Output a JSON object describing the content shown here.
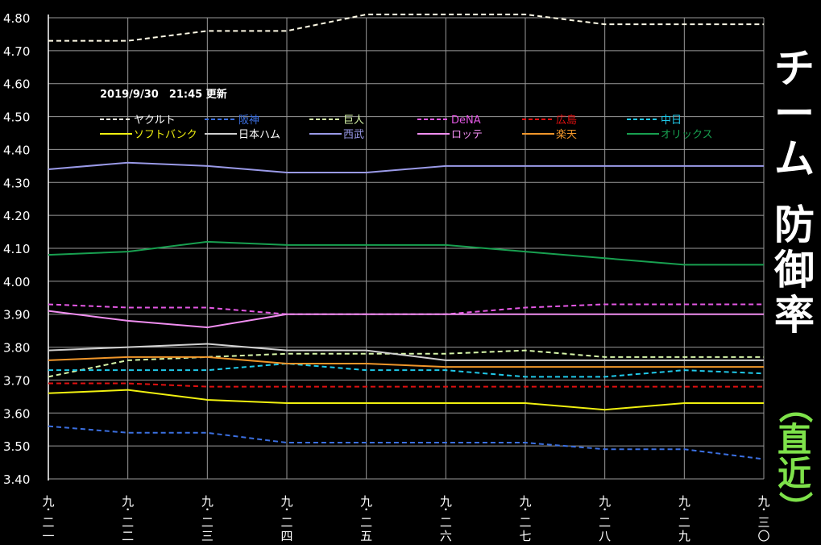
{
  "chart_data": {
    "type": "line",
    "timestamp": "2019/9/30　21:45 更新",
    "title_main": [
      "チ",
      "ー",
      "ム",
      "防",
      "御",
      "率"
    ],
    "title_sub": [
      "（",
      "直",
      "近",
      "）"
    ],
    "x_tick_labels": [
      "九・二一",
      "九・二二",
      "九・二三",
      "九・二四",
      "九・二五",
      "九・二六",
      "九・二七",
      "九・二八",
      "九・二九",
      "九・三〇"
    ],
    "y_tick_labels": [
      "3.40",
      "3.50",
      "3.60",
      "3.70",
      "3.80",
      "3.90",
      "4.00",
      "4.10",
      "4.20",
      "4.30",
      "4.40",
      "4.50",
      "4.60",
      "4.70",
      "4.80"
    ],
    "ylim": [
      3.4,
      4.8
    ],
    "series": [
      {
        "name": "ヤクルト",
        "color": "#fffbe6",
        "dashed": true,
        "legend_color": "#ffffff",
        "values": [
          4.73,
          4.73,
          4.76,
          4.76,
          4.81,
          4.81,
          4.81,
          4.78,
          4.78,
          4.78
        ]
      },
      {
        "name": "阪神",
        "color": "#3b6fe0",
        "dashed": true,
        "legend_color": "#3b6fe0",
        "values": [
          3.56,
          3.54,
          3.54,
          3.51,
          3.51,
          3.51,
          3.51,
          3.49,
          3.49,
          3.46
        ]
      },
      {
        "name": "巨人",
        "color": "#d6f5a8",
        "dashed": true,
        "legend_color": "#d6f5a8",
        "values": [
          3.71,
          3.76,
          3.77,
          3.78,
          3.78,
          3.78,
          3.79,
          3.77,
          3.77,
          3.77
        ]
      },
      {
        "name": "DeNA",
        "color": "#e458e4",
        "dashed": true,
        "legend_color": "#e458e4",
        "values": [
          3.93,
          3.92,
          3.92,
          3.9,
          3.9,
          3.9,
          3.92,
          3.93,
          3.93,
          3.93
        ]
      },
      {
        "name": "広島",
        "color": "#e01010",
        "dashed": true,
        "legend_color": "#e01010",
        "values": [
          3.69,
          3.69,
          3.68,
          3.68,
          3.68,
          3.68,
          3.68,
          3.68,
          3.68,
          3.68
        ]
      },
      {
        "name": "中日",
        "color": "#20c8e8",
        "dashed": true,
        "legend_color": "#20c8e8",
        "values": [
          3.73,
          3.73,
          3.73,
          3.75,
          3.73,
          3.73,
          3.71,
          3.71,
          3.73,
          3.72
        ]
      },
      {
        "name": "ソフトバンク",
        "color": "#f0f010",
        "dashed": false,
        "legend_color": "#f0f010",
        "values": [
          3.66,
          3.67,
          3.64,
          3.63,
          3.63,
          3.63,
          3.63,
          3.61,
          3.63,
          3.63
        ]
      },
      {
        "name": "日本ハム",
        "color": "#d0d0d0",
        "dashed": false,
        "legend_color": "#ffffff",
        "values": [
          3.79,
          3.8,
          3.81,
          3.79,
          3.79,
          3.76,
          3.76,
          3.76,
          3.76,
          3.76
        ]
      },
      {
        "name": "西武",
        "color": "#9a9ae8",
        "dashed": false,
        "legend_color": "#9a9ae8",
        "values": [
          4.34,
          4.36,
          4.35,
          4.33,
          4.33,
          4.35,
          4.35,
          4.35,
          4.35,
          4.35
        ]
      },
      {
        "name": "ロッテ",
        "color": "#f08ef0",
        "dashed": false,
        "legend_color": "#f08ef0",
        "values": [
          3.91,
          3.88,
          3.86,
          3.9,
          3.9,
          3.9,
          3.9,
          3.9,
          3.9,
          3.9
        ]
      },
      {
        "name": "楽天",
        "color": "#f0962a",
        "dashed": false,
        "legend_color": "#f0962a",
        "values": [
          3.76,
          3.77,
          3.77,
          3.75,
          3.75,
          3.74,
          3.74,
          3.74,
          3.74,
          3.74
        ]
      },
      {
        "name": "オリックス",
        "color": "#18a050",
        "dashed": false,
        "legend_color": "#18a050",
        "values": [
          4.08,
          4.09,
          4.12,
          4.11,
          4.11,
          4.11,
          4.09,
          4.07,
          4.05,
          4.05
        ]
      }
    ],
    "grid": true,
    "legend_position": "top-left"
  }
}
